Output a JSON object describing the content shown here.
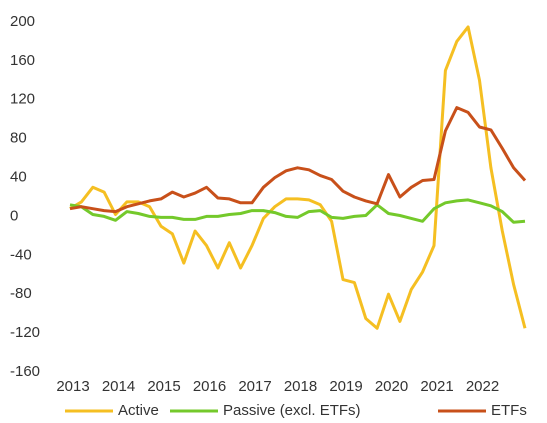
{
  "chart_data": {
    "type": "line",
    "categories": [
      "2013",
      null,
      null,
      null,
      "2014",
      null,
      null,
      null,
      "2015",
      null,
      null,
      null,
      "2016",
      null,
      null,
      null,
      "2017",
      null,
      null,
      null,
      "2018",
      null,
      null,
      null,
      "2019",
      null,
      null,
      null,
      "2020",
      null,
      null,
      null,
      "2021",
      null,
      null,
      null,
      "2022",
      null,
      null,
      null,
      null
    ],
    "series": [
      {
        "name": "Active",
        "color": "#f5bf22",
        "values": [
          8,
          15,
          30,
          25,
          2,
          15,
          15,
          10,
          -10,
          -18,
          -48,
          -15,
          -30,
          -53,
          -27,
          -53,
          -30,
          -2,
          10,
          18,
          18,
          17,
          12,
          -5,
          -65,
          -68,
          -105,
          -115,
          -80,
          -108,
          -75,
          -57,
          -30,
          150,
          180,
          195,
          140,
          50,
          -15,
          -70,
          -115
        ]
      },
      {
        "name": "Passive (excl. ETFs)",
        "color": "#74c92b",
        "values": [
          12,
          10,
          2,
          0,
          -4,
          5,
          3,
          0,
          -1,
          -1,
          -3,
          -3,
          0,
          0,
          2,
          3,
          6,
          6,
          4,
          0,
          -1,
          5,
          6,
          -1,
          -2,
          0,
          1,
          12,
          3,
          1,
          -2,
          -5,
          8,
          14,
          16,
          17,
          14,
          11,
          5,
          -6,
          -5
        ]
      },
      {
        "name": "ETFs",
        "color": "#c8501a",
        "values": [
          8,
          10,
          8,
          6,
          5,
          10,
          13,
          16,
          18,
          25,
          20,
          24,
          30,
          19,
          18,
          14,
          14,
          30,
          40,
          47,
          50,
          48,
          42,
          38,
          26,
          20,
          16,
          13,
          43,
          20,
          30,
          37,
          38,
          88,
          112,
          107,
          92,
          89,
          70,
          50,
          37
        ]
      }
    ],
    "ylim": [
      -160,
      200
    ],
    "yticks": [
      -160,
      -120,
      -80,
      -40,
      0,
      40,
      80,
      120,
      160,
      200
    ],
    "legend": "bottom"
  }
}
